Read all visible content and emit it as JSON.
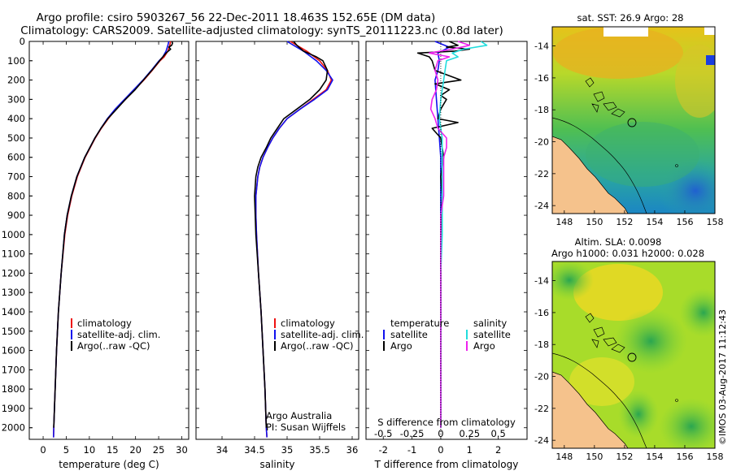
{
  "header": {
    "title_line1": "Argo profile: csiro 5903267_56 22-Dec-2011 18.463S 152.65E (DM data)",
    "title_line2": "Climatology: CARS2009. Satellite-adjusted climatology: synTS_20111223.nc (0.8d later)"
  },
  "colors": {
    "climatology": "#ee1111",
    "satellite_adj": "#1111ee",
    "argo": "#000000",
    "sal_satellite": "#22dddd",
    "sal_argo": "#ee22ee",
    "land": "#f5c28c"
  },
  "depth_axis": {
    "ticks": [
      0,
      100,
      200,
      300,
      400,
      500,
      600,
      700,
      800,
      900,
      1000,
      1100,
      1200,
      1300,
      1400,
      1500,
      1600,
      1700,
      1800,
      1900,
      2000
    ],
    "range": [
      0,
      2060
    ]
  },
  "chart_data": [
    {
      "id": "temperature",
      "type": "line",
      "xlabel": "temperature (deg C)",
      "xlim": [
        -3,
        31.5
      ],
      "xticks": [
        0,
        5,
        10,
        15,
        20,
        25,
        30
      ],
      "ylabel": "depth",
      "legend": [
        "climatology",
        "satellite-adj. clim.",
        "Argo(..raw -QC)"
      ],
      "series": [
        {
          "name": "climatology",
          "depth": [
            0,
            20,
            50,
            80,
            100,
            150,
            200,
            250,
            300,
            350,
            400,
            450,
            500,
            600,
            700,
            800,
            900,
            1000,
            1200,
            1400,
            1600,
            1800,
            2000,
            2050
          ],
          "values": [
            27.6,
            27.4,
            27.0,
            26.2,
            25.3,
            23.6,
            21.8,
            19.8,
            17.8,
            15.8,
            14.1,
            12.6,
            11.3,
            9.1,
            7.4,
            6.2,
            5.3,
            4.7,
            3.9,
            3.3,
            2.9,
            2.6,
            2.3,
            2.25
          ]
        },
        {
          "name": "satellite-adj. clim.",
          "depth": [
            0,
            20,
            50,
            80,
            100,
            150,
            200,
            250,
            300,
            350,
            400,
            450,
            500,
            600,
            700,
            800,
            900,
            1000,
            1200,
            1400,
            1600,
            1800,
            2000,
            2050
          ],
          "values": [
            27.2,
            27.0,
            26.6,
            25.9,
            25.1,
            23.4,
            21.6,
            19.6,
            17.6,
            15.6,
            13.9,
            12.5,
            11.2,
            9.0,
            7.3,
            6.1,
            5.2,
            4.6,
            3.9,
            3.3,
            2.9,
            2.6,
            2.3,
            2.25
          ]
        },
        {
          "name": "Argo(..raw -QC)",
          "depth": [
            0,
            10,
            20,
            30,
            40,
            50,
            60,
            80,
            100,
            150,
            200,
            250,
            300,
            350,
            400,
            450,
            500,
            600,
            700,
            800,
            900,
            1000,
            1200,
            1400,
            1600,
            1800,
            2000
          ],
          "values": [
            27.9,
            28.0,
            27.8,
            27.2,
            27.6,
            27.1,
            26.6,
            25.9,
            25.2,
            23.5,
            21.7,
            19.9,
            17.8,
            15.9,
            14.0,
            12.5,
            11.2,
            9.0,
            7.3,
            6.1,
            5.2,
            4.6,
            3.9,
            3.3,
            2.9,
            2.6,
            2.3
          ]
        }
      ]
    },
    {
      "id": "salinity",
      "type": "line",
      "xlabel": "salinity",
      "xlim": [
        33.6,
        36.1
      ],
      "xticks": [
        34,
        34.5,
        35,
        35.5,
        36
      ],
      "legend": [
        "climatology",
        "satellite-adj. clim.",
        "Argo(..raw -QC)"
      ],
      "annotation": [
        "Argo Australia",
        "PI: Susan Wijffels"
      ],
      "series": [
        {
          "name": "climatology",
          "depth": [
            0,
            20,
            50,
            100,
            150,
            200,
            250,
            300,
            350,
            400,
            450,
            500,
            550,
            600,
            650,
            700,
            800,
            900,
            1000,
            1200,
            1400,
            1600,
            1800,
            2000,
            2050
          ],
          "values": [
            35.05,
            35.15,
            35.3,
            35.5,
            35.62,
            35.68,
            35.6,
            35.4,
            35.2,
            35.0,
            34.88,
            34.78,
            34.7,
            34.63,
            34.58,
            34.55,
            34.52,
            34.52,
            34.53,
            34.56,
            34.6,
            34.63,
            34.66,
            34.68,
            34.69
          ]
        },
        {
          "name": "satellite-adj. clim.",
          "depth": [
            0,
            20,
            50,
            100,
            150,
            200,
            250,
            300,
            350,
            400,
            450,
            500,
            550,
            600,
            650,
            700,
            800,
            900,
            1000,
            1200,
            1400,
            1600,
            1800,
            2000,
            2050
          ],
          "values": [
            35.0,
            35.1,
            35.25,
            35.45,
            35.6,
            35.7,
            35.62,
            35.42,
            35.2,
            35.0,
            34.88,
            34.78,
            34.7,
            34.63,
            34.58,
            34.55,
            34.52,
            34.52,
            34.53,
            34.56,
            34.6,
            34.63,
            34.66,
            34.68,
            34.69
          ]
        },
        {
          "name": "Argo(..raw -QC)",
          "depth": [
            0,
            20,
            50,
            80,
            100,
            150,
            200,
            250,
            300,
            350,
            400,
            450,
            500,
            550,
            600,
            650,
            700,
            800,
            900,
            1000,
            1200,
            1400,
            1600,
            1800,
            2000
          ],
          "values": [
            35.1,
            35.15,
            35.25,
            35.45,
            35.55,
            35.62,
            35.6,
            35.5,
            35.35,
            35.15,
            34.95,
            34.85,
            34.75,
            34.68,
            34.6,
            34.55,
            34.52,
            34.5,
            34.51,
            34.52,
            34.56,
            34.6,
            34.63,
            34.66,
            34.68
          ]
        }
      ]
    },
    {
      "id": "difference",
      "type": "line",
      "xlabel": "T difference from climatology",
      "xlabel_top": "S difference from climatology",
      "xlim": [
        -2.6,
        3.0
      ],
      "xticks": [
        -2,
        -1,
        0,
        1,
        2
      ],
      "xticks_top": [
        "-0.5",
        "-0.25",
        "0",
        "0.25",
        "0.5"
      ],
      "legend": {
        "temperature": [
          "satellite",
          "Argo"
        ],
        "salinity": [
          "satellite",
          "Argo"
        ]
      },
      "series": [
        {
          "name": "temperature satellite",
          "depth": [
            0,
            30,
            60,
            100,
            150,
            200,
            300,
            400,
            500,
            600,
            800,
            1000,
            1500,
            2000
          ],
          "values": [
            -0.2,
            0.3,
            -0.1,
            -0.05,
            -0.1,
            -0.2,
            -0.15,
            -0.1,
            -0.05,
            0.0,
            0.0,
            0.0,
            0.0,
            0.0
          ]
        },
        {
          "name": "temperature Argo",
          "depth": [
            0,
            20,
            30,
            40,
            50,
            60,
            80,
            100,
            150,
            200,
            220,
            250,
            280,
            300,
            350,
            400,
            420,
            450,
            500,
            600,
            700,
            800,
            1000,
            1500,
            2000
          ],
          "values": [
            0.3,
            0.6,
            0.2,
            1.0,
            0.5,
            -0.8,
            -0.4,
            -0.3,
            -0.2,
            0.7,
            -0.2,
            0.3,
            0.0,
            0.2,
            0.0,
            -0.1,
            0.6,
            -0.3,
            0.0,
            0.1,
            0.0,
            0.05,
            0.0,
            0.0,
            0.0
          ]
        },
        {
          "name": "salinity satellite",
          "depth": [
            0,
            20,
            40,
            60,
            80,
            100,
            150,
            200,
            300,
            400,
            500,
            600,
            800,
            1000,
            1200,
            1500,
            2000
          ],
          "values": [
            1.4,
            1.6,
            0.8,
            0.4,
            0.6,
            0.2,
            0.15,
            0.1,
            0.0,
            -0.05,
            0.05,
            0.05,
            0.05,
            0.05,
            0.0,
            0.0,
            0.0
          ]
        },
        {
          "name": "salinity Argo",
          "depth": [
            0,
            20,
            40,
            60,
            80,
            100,
            150,
            200,
            250,
            300,
            350,
            400,
            450,
            500,
            550,
            600,
            700,
            800,
            900,
            1000,
            1200,
            1500,
            2000
          ],
          "values": [
            0.6,
            1.0,
            0.4,
            -0.4,
            0.3,
            -0.1,
            -0.2,
            -0.1,
            -0.15,
            -0.3,
            -0.35,
            -0.2,
            -0.1,
            0.2,
            0.2,
            0.1,
            0.1,
            0.1,
            0.0,
            0.0,
            0.0,
            0.0,
            0.0
          ]
        }
      ]
    },
    {
      "id": "sst_map",
      "type": "heatmap",
      "title": "sat. SST: 26.9 Argo: 28",
      "xticks": [
        148,
        150,
        152,
        154,
        156,
        158
      ],
      "yticks": [
        -14,
        -16,
        -18,
        -20,
        -22,
        -24
      ],
      "argo_position": {
        "lon": 152.65,
        "lat": -18.463
      }
    },
    {
      "id": "sla_map",
      "type": "heatmap",
      "title_line1": "Altim. SLA: 0.0098",
      "title_line2": "Argo h1000: 0.031 h2000: 0.028",
      "xticks": [
        148,
        150,
        152,
        154,
        156,
        158
      ],
      "yticks": [
        -14,
        -16,
        -18,
        -20,
        -22,
        -24
      ],
      "argo_position": {
        "lon": 152.65,
        "lat": -18.463
      }
    }
  ],
  "credit": "©IMOS 03-Aug-2017 11:12:43"
}
